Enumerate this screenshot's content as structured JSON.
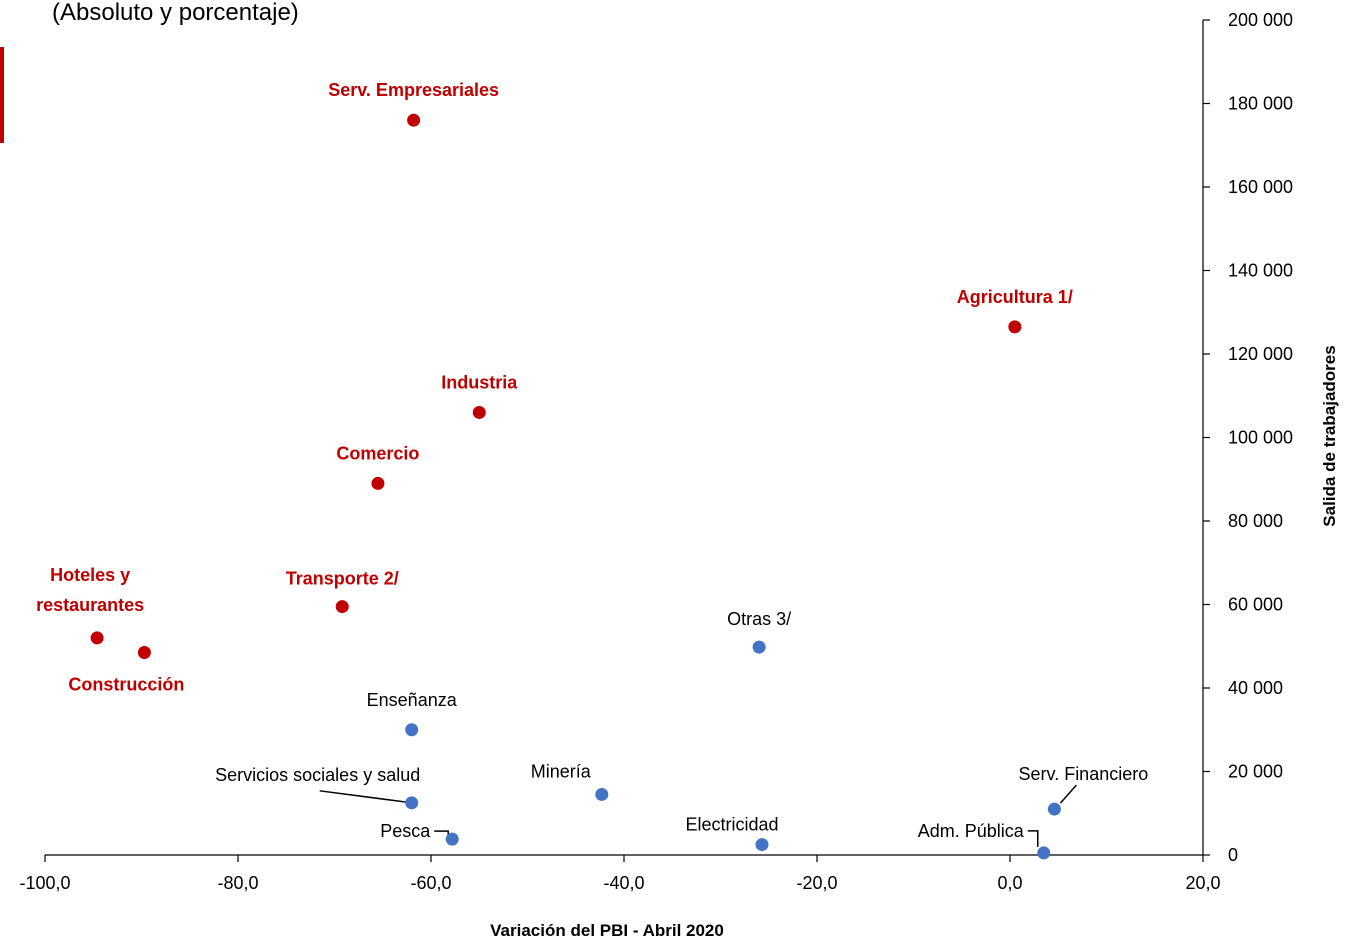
{
  "subtitle": "(Absoluto y porcentaje)",
  "colors": {
    "highlight": "#c00000",
    "normal": "#4472c4",
    "axis": "#000000"
  },
  "chart_data": {
    "type": "scatter",
    "xlabel": "Variación del PBI - Abril 2020",
    "ylabel": "Salida de trabajadores",
    "xlim": [
      -100,
      20
    ],
    "ylim": [
      0,
      200000
    ],
    "y_axis_side": "right",
    "grid": false,
    "x_ticks": [
      "-100,0",
      "-80,0",
      "-60,0",
      "-40,0",
      "-20,0",
      "0,0",
      "20,0"
    ],
    "y_ticks": [
      "0",
      "20 000",
      "40 000",
      "60 000",
      "80 000",
      "100 000",
      "120 000",
      "140 000",
      "160 000",
      "180 000",
      "200 000"
    ],
    "points": [
      {
        "label": "Serv. Empresariales",
        "x": -61.8,
        "y": 176000,
        "group": "highlight"
      },
      {
        "label": "Agricultura 1/",
        "x": 0.5,
        "y": 126500,
        "group": "highlight"
      },
      {
        "label": "Industria",
        "x": -55.0,
        "y": 106000,
        "group": "highlight"
      },
      {
        "label": "Comercio",
        "x": -65.5,
        "y": 89000,
        "group": "highlight"
      },
      {
        "label": "Transporte 2/",
        "x": -69.2,
        "y": 59500,
        "group": "highlight"
      },
      {
        "label": "Hoteles y restaurantes",
        "label_lines": [
          "Hoteles y",
          "restaurantes"
        ],
        "x": -94.6,
        "y": 52000,
        "group": "highlight"
      },
      {
        "label": "Construcción",
        "x": -89.7,
        "y": 48500,
        "group": "highlight"
      },
      {
        "label": "Otras 3/",
        "x": -26.0,
        "y": 49800,
        "group": "normal"
      },
      {
        "label": "Enseñanza",
        "x": -62.0,
        "y": 30000,
        "group": "normal"
      },
      {
        "label": "Servicios sociales y salud",
        "x": -62.0,
        "y": 12500,
        "group": "normal"
      },
      {
        "label": "Minería",
        "x": -42.3,
        "y": 14500,
        "group": "normal"
      },
      {
        "label": "Pesca",
        "x": -57.8,
        "y": 3800,
        "group": "normal"
      },
      {
        "label": "Electricidad",
        "x": -25.7,
        "y": 2500,
        "group": "normal"
      },
      {
        "label": "Serv. Financiero",
        "x": 4.6,
        "y": 11000,
        "group": "normal"
      },
      {
        "label": "Adm. Pública",
        "x": 3.5,
        "y": 500,
        "group": "normal"
      }
    ]
  }
}
